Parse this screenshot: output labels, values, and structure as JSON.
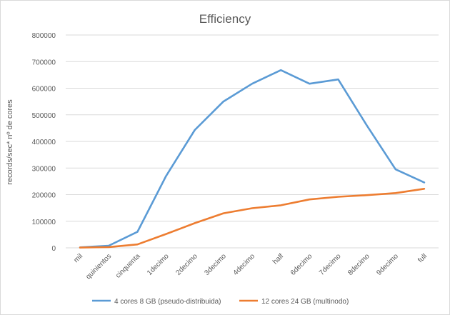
{
  "chart_data": {
    "type": "line",
    "title": "Efficiency",
    "xlabel": "",
    "ylabel": "records/sec* nº de cores",
    "ylim": [
      0,
      800000
    ],
    "yticks": [
      0,
      100000,
      200000,
      300000,
      400000,
      500000,
      600000,
      700000,
      800000
    ],
    "grid": true,
    "legend_position": "bottom",
    "categories": [
      "mil",
      "quinientos",
      "cinquenta",
      "1decimo",
      "2decimo",
      "3decimo",
      "4decimo",
      "half",
      "6decimo",
      "7decimo",
      "8decimo",
      "9decimo",
      "full"
    ],
    "series": [
      {
        "name": "4 cores 8 GB (pseudo-distribuida)",
        "color": "#5b9bd5",
        "values": [
          2000,
          8000,
          60000,
          270000,
          443000,
          550000,
          617000,
          668000,
          617000,
          633000,
          460000,
          295000,
          246000
        ]
      },
      {
        "name": "12 cores 24 GB (multinodo)",
        "color": "#ed7d31",
        "values": [
          1000,
          3000,
          13000,
          52000,
          93000,
          130000,
          149000,
          160000,
          182000,
          192000,
          198000,
          206000,
          222000
        ]
      }
    ]
  }
}
